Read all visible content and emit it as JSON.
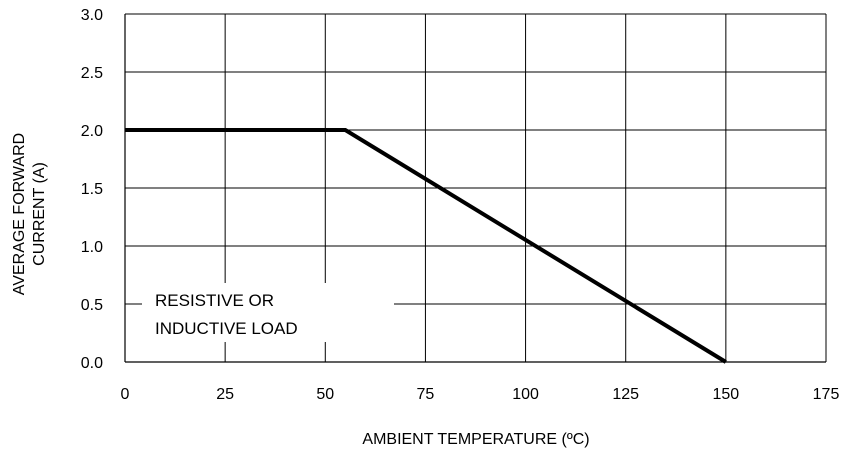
{
  "chart_data": {
    "type": "line",
    "title": "",
    "xlabel": "AMBIENT TEMPERATURE (ºC)",
    "ylabel_lines": [
      "AVERAGE FORWARD",
      "CURRENT (A)"
    ],
    "xlim": [
      0,
      175
    ],
    "ylim": [
      0,
      3.0
    ],
    "x_ticks": [
      0,
      25,
      50,
      75,
      100,
      125,
      150,
      175
    ],
    "x_tick_labels": [
      "0",
      "25",
      "50",
      "75",
      "100",
      "125",
      "150",
      "175"
    ],
    "y_ticks": [
      0,
      0.5,
      1.0,
      1.5,
      2.0,
      2.5,
      3.0
    ],
    "y_tick_labels": [
      "0.0",
      "0.5",
      "1.0",
      "1.5",
      "2.0",
      "2.5",
      "3.0"
    ],
    "grid": true,
    "legend": "none",
    "series": [
      {
        "x": [
          0,
          55,
          150
        ],
        "y": [
          2.0,
          2.0,
          0.0
        ],
        "color": "#000000"
      }
    ],
    "annotation_lines": [
      "RESISTIVE OR",
      "INDUCTIVE LOAD"
    ]
  }
}
